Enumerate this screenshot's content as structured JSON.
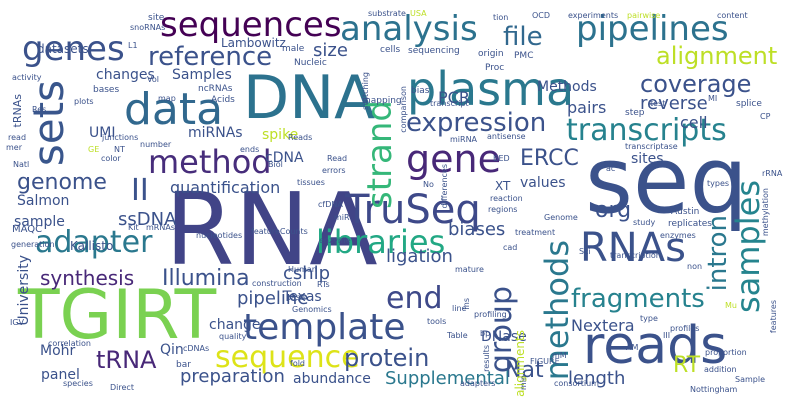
{
  "words": [
    {
      "text": "RNA",
      "color": "#414487"
    },
    {
      "text": "seq",
      "color": "#3b528b"
    },
    {
      "text": "TGIRT",
      "color": "#7ad151"
    },
    {
      "text": "DNA",
      "color": "#2c728e"
    },
    {
      "text": "reads",
      "color": "#3b528b"
    },
    {
      "text": "plasma",
      "color": "#2a788e"
    },
    {
      "text": "data",
      "color": "#31688e"
    },
    {
      "text": "genes",
      "color": "#3b528b"
    },
    {
      "text": "sequences",
      "color": "#440154"
    },
    {
      "text": "analysis",
      "color": "#2c728e"
    },
    {
      "text": "pipelines",
      "color": "#2c728e"
    },
    {
      "text": "gene",
      "color": "#482878"
    },
    {
      "text": "sets",
      "color": "#39568c"
    },
    {
      "text": "TruSeq",
      "color": "#3e4989"
    },
    {
      "text": "template",
      "color": "#3b528b"
    },
    {
      "text": "libraries",
      "color": "#22a884"
    },
    {
      "text": "method",
      "color": "#472d7b"
    },
    {
      "text": "RNAs",
      "color": "#3b528b"
    },
    {
      "text": "samples",
      "color": "#25848e"
    },
    {
      "text": "transcripts",
      "color": "#26828e"
    },
    {
      "text": "strand",
      "color": "#35b779"
    },
    {
      "text": "adapter",
      "color": "#2a788e"
    },
    {
      "text": "sequence",
      "color": "#dde318"
    },
    {
      "text": "methods",
      "color": "#2a788e"
    },
    {
      "text": "reference",
      "color": "#3b528b"
    },
    {
      "text": "expression",
      "color": "#3b528b"
    },
    {
      "text": "alignment",
      "color": "#bddf26"
    },
    {
      "text": "file",
      "color": "#31688e"
    },
    {
      "text": "coverage",
      "color": "#3b528b"
    },
    {
      "text": "end",
      "color": "#3e4989"
    },
    {
      "text": "group",
      "color": "#3b528b"
    },
    {
      "text": "intron",
      "color": "#2a788e"
    },
    {
      "text": "fragments",
      "color": "#26828e"
    },
    {
      "text": "protein",
      "color": "#3b528b"
    },
    {
      "text": "Illumina",
      "color": "#3b528b"
    },
    {
      "text": "tRNA",
      "color": "#482878"
    },
    {
      "text": "primer",
      "color": "#3b528b"
    },
    {
      "text": "II",
      "color": "#3b528b"
    },
    {
      "text": "genome",
      "color": "#3b528b"
    },
    {
      "text": "Nat",
      "color": "#3b528b"
    },
    {
      "text": "ERCC",
      "color": "#3b528b"
    },
    {
      "text": "RT",
      "color": "#bddf26"
    },
    {
      "text": "quantification",
      "color": "#3b528b"
    },
    {
      "text": "org",
      "color": "#3b528b"
    },
    {
      "text": "synthesis",
      "color": "#482878"
    },
    {
      "text": "preparation",
      "color": "#3b528b"
    },
    {
      "text": "Supplemental",
      "color": "#2a788e"
    },
    {
      "text": "length",
      "color": "#3b528b"
    },
    {
      "text": "pipeline",
      "color": "#3b528b"
    },
    {
      "text": "cshlp",
      "color": "#3b528b"
    },
    {
      "text": "ligation",
      "color": "#3b528b"
    },
    {
      "text": "biases",
      "color": "#3b528b"
    },
    {
      "text": "Nextera",
      "color": "#3b528b"
    },
    {
      "text": "size",
      "color": "#3b528b"
    },
    {
      "text": "PCR",
      "color": "#3b528b"
    },
    {
      "text": "pairs",
      "color": "#3b528b"
    },
    {
      "text": "reverse",
      "color": "#3b528b"
    },
    {
      "text": "cell",
      "color": "#3b528b"
    },
    {
      "text": "changes",
      "color": "#3b528b"
    },
    {
      "text": "Samples",
      "color": "#3b528b"
    },
    {
      "text": "Methods",
      "color": "#3b528b"
    },
    {
      "text": "spike",
      "color": "#bddf26"
    },
    {
      "text": "miRNAs",
      "color": "#3b528b"
    },
    {
      "text": "UMI",
      "color": "#3b528b"
    },
    {
      "text": "Salmon",
      "color": "#3b528b"
    },
    {
      "text": "ssDNA",
      "color": "#3b528b"
    },
    {
      "text": "cDNA",
      "color": "#3b528b"
    },
    {
      "text": "sample",
      "color": "#3b528b"
    },
    {
      "text": "values",
      "color": "#3b528b"
    },
    {
      "text": "sites",
      "color": "#3b528b"
    },
    {
      "text": "change",
      "color": "#3b528b"
    },
    {
      "text": "Texas",
      "color": "#3b528b"
    },
    {
      "text": "Qin",
      "color": "#3b528b"
    },
    {
      "text": "panel",
      "color": "#3b528b"
    },
    {
      "text": "abundance",
      "color": "#3b528b"
    },
    {
      "text": "Mohr",
      "color": "#3b528b"
    },
    {
      "text": "University",
      "color": "#3b528b"
    },
    {
      "text": "DNase",
      "color": "#3b528b"
    },
    {
      "text": "datasets",
      "color": "#3b528b"
    },
    {
      "text": "Lambowitz",
      "color": "#3b528b"
    },
    {
      "text": "Kallisto",
      "color": "#3b528b"
    },
    {
      "text": "MAQC",
      "color": "#3b528b"
    },
    {
      "text": "alignments",
      "color": "#bddf26"
    },
    {
      "text": "XT",
      "color": "#3b528b"
    },
    {
      "text": "site",
      "color": "#3b528b"
    },
    {
      "text": "substrate",
      "color": "#3b528b"
    },
    {
      "text": "USA",
      "color": "#bddf26"
    },
    {
      "text": "tion",
      "color": "#3b528b"
    },
    {
      "text": "OCD",
      "color": "#3b528b"
    },
    {
      "text": "experiments",
      "color": "#3b528b"
    },
    {
      "text": "pairwise",
      "color": "#bddf26"
    },
    {
      "text": "content",
      "color": "#3b528b"
    },
    {
      "text": "snoRNAs",
      "color": "#3b528b"
    },
    {
      "text": "male",
      "color": "#3b528b"
    },
    {
      "text": "Nucleic",
      "color": "#3b528b"
    },
    {
      "text": "cells",
      "color": "#3b528b"
    },
    {
      "text": "sequencing",
      "color": "#3b528b"
    },
    {
      "text": "origin",
      "color": "#3b528b"
    },
    {
      "text": "Proc",
      "color": "#3b528b"
    },
    {
      "text": "PMC",
      "color": "#3b528b"
    },
    {
      "text": "ncRNAs",
      "color": "#3b528b"
    },
    {
      "text": "Acids",
      "color": "#3b528b"
    },
    {
      "text": "bias",
      "color": "#3b528b"
    },
    {
      "text": "mapping",
      "color": "#3b528b"
    },
    {
      "text": "transcript",
      "color": "#3b528b"
    },
    {
      "text": "test",
      "color": "#3b528b"
    },
    {
      "text": "splice",
      "color": "#3b528b"
    },
    {
      "text": "step",
      "color": "#3b528b"
    },
    {
      "text": "MI",
      "color": "#3b528b"
    },
    {
      "text": "CP",
      "color": "#3b528b"
    },
    {
      "text": "tRNAs",
      "color": "#3b528b"
    },
    {
      "text": "Res",
      "color": "#3b528b"
    },
    {
      "text": "plots",
      "color": "#3b528b"
    },
    {
      "text": "read",
      "color": "#3b528b"
    },
    {
      "text": "mer",
      "color": "#3b528b"
    },
    {
      "text": "junctions",
      "color": "#3b528b"
    },
    {
      "text": "number",
      "color": "#3b528b"
    },
    {
      "text": "ends",
      "color": "#3b528b"
    },
    {
      "text": "Reads",
      "color": "#3b528b"
    },
    {
      "text": "antisense",
      "color": "#3b528b"
    },
    {
      "text": "comparison",
      "color": "#3b528b"
    },
    {
      "text": "miRNA",
      "color": "#3b528b"
    },
    {
      "text": "transcriptase",
      "color": "#3b528b"
    },
    {
      "text": "rRNA",
      "color": "#3b528b"
    },
    {
      "text": "types",
      "color": "#3b528b"
    },
    {
      "text": "Austin",
      "color": "#3b528b"
    },
    {
      "text": "replicates",
      "color": "#3b528b"
    },
    {
      "text": "enzymes",
      "color": "#3b528b"
    },
    {
      "text": "methylation",
      "color": "#3b528b"
    },
    {
      "text": "study",
      "color": "#3b528b"
    },
    {
      "text": "Genome",
      "color": "#3b528b"
    },
    {
      "text": "regions",
      "color": "#3b528b"
    },
    {
      "text": "treatment",
      "color": "#3b528b"
    },
    {
      "text": "Read",
      "color": "#3b528b"
    },
    {
      "text": "errors",
      "color": "#3b528b"
    },
    {
      "text": "Biol",
      "color": "#3b528b"
    },
    {
      "text": "cfDNA",
      "color": "#3b528b"
    },
    {
      "text": "miR",
      "color": "#3b528b"
    },
    {
      "text": "tissues",
      "color": "#3b528b"
    },
    {
      "text": "Kit",
      "color": "#3b528b"
    },
    {
      "text": "mRNAs",
      "color": "#3b528b"
    },
    {
      "text": "Human",
      "color": "#3b528b"
    },
    {
      "text": "construction",
      "color": "#3b528b"
    },
    {
      "text": "enzyme",
      "color": "#3b528b"
    },
    {
      "text": "base",
      "color": "#3b528b"
    },
    {
      "text": "RTs",
      "color": "#3b528b"
    },
    {
      "text": "quality",
      "color": "#3b528b"
    },
    {
      "text": "Genomics",
      "color": "#3b528b"
    },
    {
      "text": "line",
      "color": "#3b528b"
    },
    {
      "text": "tools",
      "color": "#3b528b"
    },
    {
      "text": "profiling",
      "color": "#3b528b"
    },
    {
      "text": "bp",
      "color": "#3b528b"
    },
    {
      "text": "Table",
      "color": "#3b528b"
    },
    {
      "text": "IGV",
      "color": "#3b528b"
    },
    {
      "text": "correlation",
      "color": "#3b528b"
    },
    {
      "text": "cDNAs",
      "color": "#3b528b"
    },
    {
      "text": "bar",
      "color": "#3b528b"
    },
    {
      "text": "species",
      "color": "#3b528b"
    },
    {
      "text": "Direct",
      "color": "#3b528b"
    },
    {
      "text": "fold",
      "color": "#3b528b"
    },
    {
      "text": "FIGURE",
      "color": "#3b528b"
    },
    {
      "text": "AM",
      "color": "#3b528b"
    },
    {
      "text": "Sci",
      "color": "#3b528b"
    },
    {
      "text": "transcription",
      "color": "#3b528b"
    },
    {
      "text": "mature",
      "color": "#3b528b"
    },
    {
      "text": "non",
      "color": "#3b528b"
    },
    {
      "text": "III",
      "color": "#3b528b"
    },
    {
      "text": "profiles",
      "color": "#3b528b"
    },
    {
      "text": "features",
      "color": "#3b528b"
    },
    {
      "text": "proportion",
      "color": "#3b528b"
    },
    {
      "text": "addition",
      "color": "#3b528b"
    },
    {
      "text": "Sample",
      "color": "#3b528b"
    },
    {
      "text": "Nottingham",
      "color": "#3b528b"
    },
    {
      "text": "consortium",
      "color": "#3b528b"
    },
    {
      "text": "adapters",
      "color": "#3b528b"
    },
    {
      "text": "results",
      "color": "#3b528b"
    },
    {
      "text": "Vol",
      "color": "#3b528b"
    },
    {
      "text": "activity",
      "color": "#3b528b"
    },
    {
      "text": "bases",
      "color": "#3b528b"
    },
    {
      "text": "Natl",
      "color": "#3b528b"
    },
    {
      "text": "generation",
      "color": "#3b528b"
    },
    {
      "text": "map",
      "color": "#3b528b"
    },
    {
      "text": "color",
      "color": "#3b528b"
    },
    {
      "text": "nucleotides",
      "color": "#3b528b"
    },
    {
      "text": "featureCounts",
      "color": "#3b528b"
    },
    {
      "text": "No",
      "color": "#3b528b"
    },
    {
      "text": "differences",
      "color": "#3b528b"
    },
    {
      "text": "reaction",
      "color": "#3b528b"
    },
    {
      "text": "GE",
      "color": "#bddf26"
    },
    {
      "text": "NT",
      "color": "#3b528b"
    },
    {
      "text": "type",
      "color": "#3b528b"
    },
    {
      "text": "BED",
      "color": "#3b528b"
    },
    {
      "text": "min",
      "color": "#3b528b"
    },
    {
      "text": "mM",
      "color": "#3b528b"
    },
    {
      "text": "Mu",
      "color": "#bddf26"
    },
    {
      "text": "switching",
      "color": "#3b528b"
    },
    {
      "text": "ins",
      "color": "#3b528b"
    },
    {
      "text": "cad",
      "color": "#3b528b"
    },
    {
      "text": "L1",
      "color": "#3b528b"
    },
    {
      "text": "ac",
      "color": "#3b528b"
    }
  ]
}
